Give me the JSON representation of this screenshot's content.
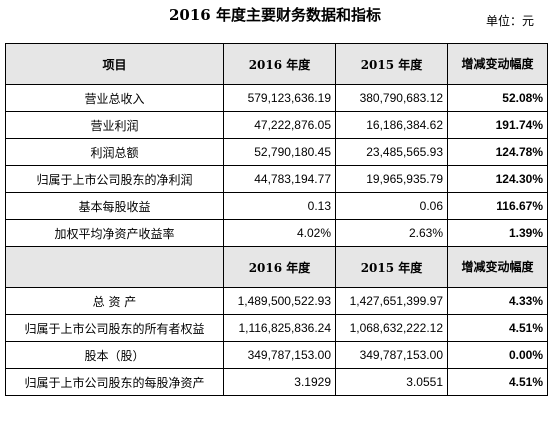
{
  "title": "2016 年度主要财务数据和指标",
  "unit": "单位：元",
  "section1": {
    "headers": [
      "项目",
      "2016 年度",
      "2015 年度",
      "增减变动幅度"
    ],
    "rows": [
      {
        "label": "营业总收入",
        "y2016": "579,123,636.19",
        "y2015": "380,790,683.12",
        "change": "52.08%"
      },
      {
        "label": "营业利润",
        "y2016": "47,222,876.05",
        "y2015": "16,186,384.62",
        "change": "191.74%"
      },
      {
        "label": "利润总额",
        "y2016": "52,790,180.45",
        "y2015": "23,485,565.93",
        "change": "124.78%"
      },
      {
        "label": "归属于上市公司股东的净利润",
        "y2016": "44,783,194.77",
        "y2015": "19,965,935.79",
        "change": "124.30%"
      },
      {
        "label": "基本每股收益",
        "y2016": "0.13",
        "y2015": "0.06",
        "change": "116.67%"
      },
      {
        "label": "加权平均净资产收益率",
        "y2016": "4.02%",
        "y2015": "2.63%",
        "change": "1.39%"
      }
    ]
  },
  "section2": {
    "headers": [
      "",
      "2016 年度",
      "2015 年度",
      "增减变动幅度"
    ],
    "rows": [
      {
        "label": "总 资 产",
        "y2016": "1,489,500,522.93",
        "y2015": "1,427,651,399.97",
        "change": "4.33%"
      },
      {
        "label": "归属于上市公司股东的所有者权益",
        "y2016": "1,116,825,836.24",
        "y2015": "1,068,632,222.12",
        "change": "4.51%"
      },
      {
        "label": "股本（股）",
        "y2016": "349,787,153.00",
        "y2015": "349,787,153.00",
        "change": "0.00%"
      },
      {
        "label": "归属于上市公司股东的每股净资产",
        "y2016": "3.1929",
        "y2015": "3.0551",
        "change": "4.51%"
      }
    ]
  }
}
